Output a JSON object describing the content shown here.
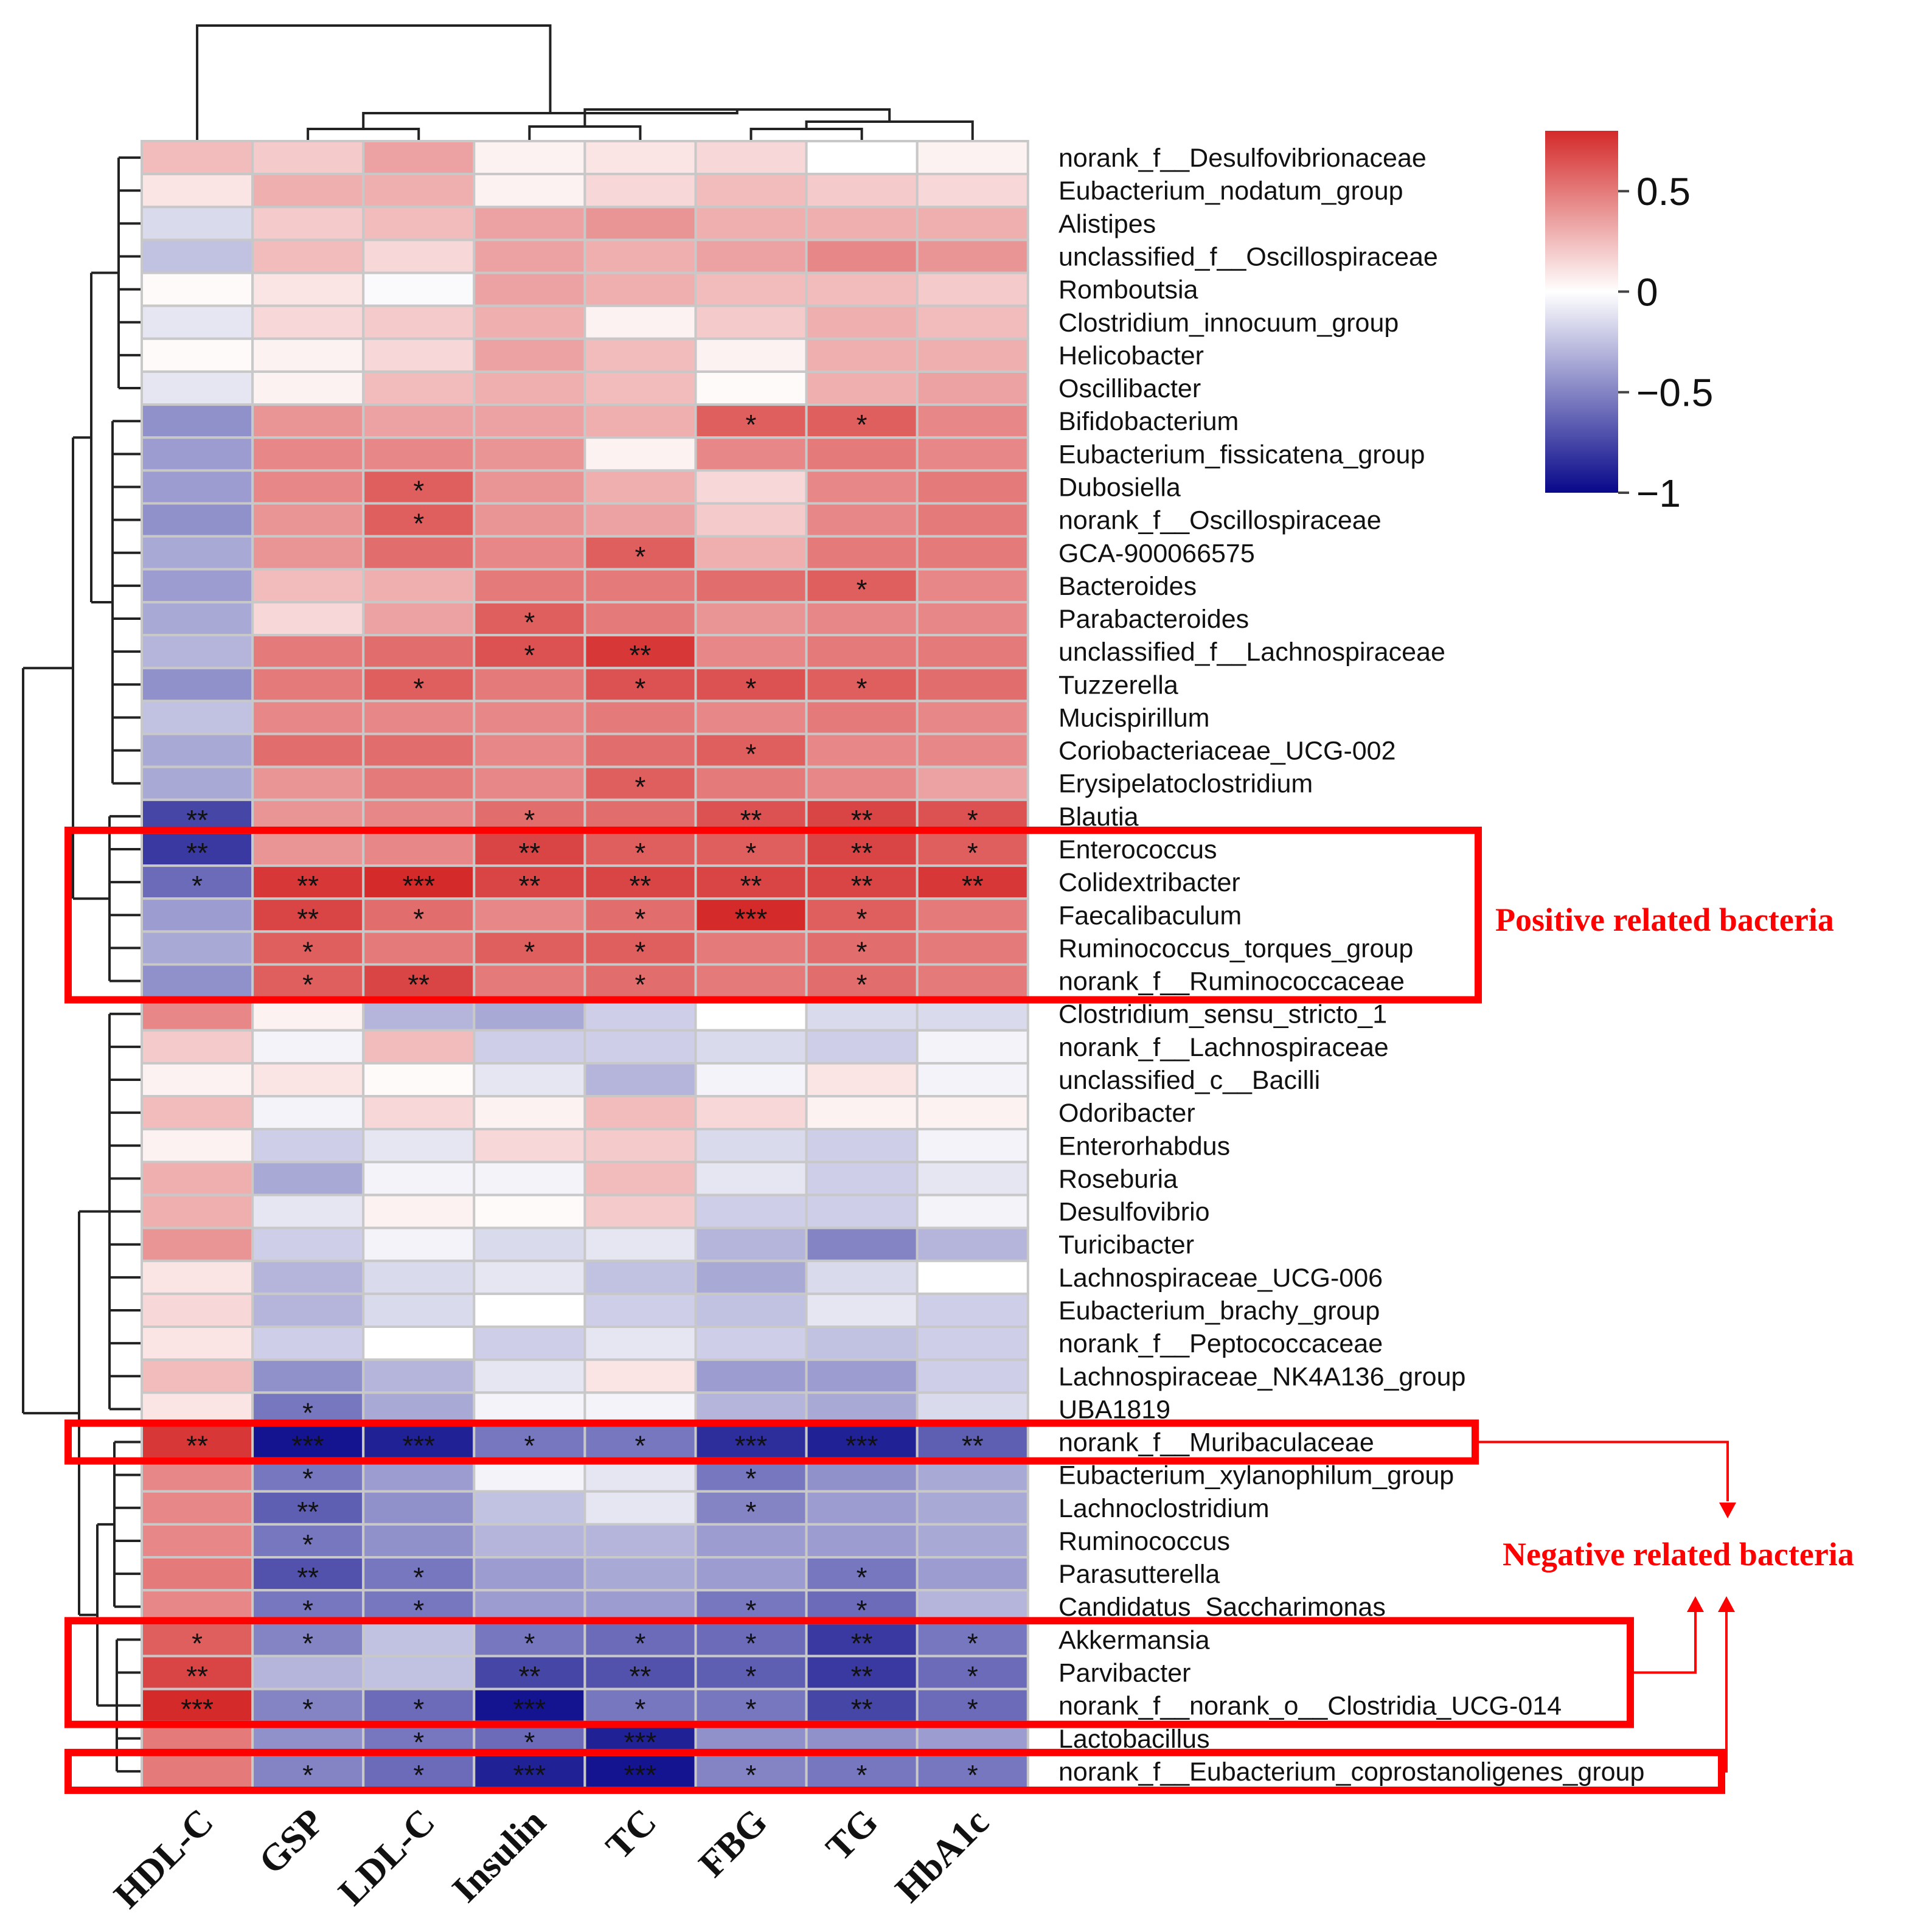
{
  "chart_data": {
    "type": "heatmap",
    "columns": [
      "HDL-C",
      "GSP",
      "LDL-C",
      "Insulin",
      "TC",
      "FBG",
      "TG",
      "HbA1c"
    ],
    "rows": [
      "norank_f__Desulfovibrionaceae",
      "Eubacterium_nodatum_group",
      "Alistipes",
      "unclassified_f__Oscillospiraceae",
      "Romboutsia",
      "Clostridium_innocuum_group",
      "Helicobacter",
      "Oscillibacter",
      "Bifidobacterium",
      "Eubacterium_fissicatena_group",
      "Dubosiella",
      "norank_f__Oscillospiraceae",
      "GCA-900066575",
      "Bacteroides",
      "Parabacteroides",
      "unclassified_f__Lachnospiraceae",
      "Tuzzerella",
      "Mucispirillum",
      "Coriobacteriaceae_UCG-002",
      "Erysipelatoclostridium",
      "Blautia",
      "Enterococcus",
      "Colidextribacter",
      "Faecalibaculum",
      "Ruminococcus_torques_group",
      "norank_f__Ruminococcaceae",
      "Clostridium_sensu_stricto_1",
      "norank_f__Lachnospiraceae",
      "unclassified_c__Bacilli",
      "Odoribacter",
      "Enterorhabdus",
      "Roseburia",
      "Desulfovibrio",
      "Turicibacter",
      "Lachnospiraceae_UCG-006",
      "Eubacterium_brachy_group",
      "norank_f__Peptococcaceae",
      "Lachnospiraceae_NK4A136_group",
      "UBA1819",
      "norank_f__Muribaculaceae",
      "Eubacterium_xylanophilum_group",
      "Lachnoclostridium",
      "Ruminococcus",
      "Parasutterella",
      "Candidatus_Saccharimonas",
      "Akkermansia",
      "Parvibacter",
      "norank_f__norank_o__Clostridia_UCG-014",
      "Lactobacillus",
      "norank_f__Eubacterium_coprostanoligenes_group"
    ],
    "values": [
      [
        0.25,
        0.2,
        0.35,
        0.05,
        0.1,
        0.15,
        0.0,
        0.05
      ],
      [
        0.1,
        0.3,
        0.3,
        0.05,
        0.15,
        0.25,
        0.2,
        0.15
      ],
      [
        -0.15,
        0.2,
        0.25,
        0.35,
        0.4,
        0.3,
        0.3,
        0.3
      ],
      [
        -0.25,
        0.25,
        0.15,
        0.35,
        0.3,
        0.35,
        0.45,
        0.4
      ],
      [
        0.02,
        0.1,
        -0.02,
        0.35,
        0.3,
        0.25,
        0.25,
        0.2
      ],
      [
        -0.1,
        0.15,
        0.2,
        0.3,
        0.05,
        0.2,
        0.3,
        0.25
      ],
      [
        0.02,
        0.05,
        0.15,
        0.35,
        0.25,
        0.05,
        0.3,
        0.3
      ],
      [
        -0.1,
        0.05,
        0.25,
        0.3,
        0.25,
        0.02,
        0.3,
        0.35
      ],
      [
        -0.45,
        0.4,
        0.35,
        0.35,
        0.3,
        0.6,
        0.6,
        0.45
      ],
      [
        -0.4,
        0.45,
        0.45,
        0.4,
        0.05,
        0.45,
        0.5,
        0.45
      ],
      [
        -0.4,
        0.45,
        0.6,
        0.4,
        0.3,
        0.15,
        0.45,
        0.5
      ],
      [
        -0.45,
        0.4,
        0.6,
        0.4,
        0.35,
        0.2,
        0.45,
        0.5
      ],
      [
        -0.35,
        0.4,
        0.55,
        0.45,
        0.6,
        0.3,
        0.5,
        0.5
      ],
      [
        -0.4,
        0.25,
        0.3,
        0.5,
        0.5,
        0.55,
        0.6,
        0.45
      ],
      [
        -0.35,
        0.15,
        0.35,
        0.6,
        0.5,
        0.4,
        0.45,
        0.45
      ],
      [
        -0.3,
        0.5,
        0.55,
        0.65,
        0.75,
        0.45,
        0.5,
        0.5
      ],
      [
        -0.45,
        0.5,
        0.6,
        0.5,
        0.65,
        0.65,
        0.6,
        0.55
      ],
      [
        -0.25,
        0.45,
        0.45,
        0.45,
        0.5,
        0.45,
        0.5,
        0.45
      ],
      [
        -0.35,
        0.55,
        0.55,
        0.45,
        0.55,
        0.6,
        0.45,
        0.45
      ],
      [
        -0.35,
        0.4,
        0.5,
        0.45,
        0.6,
        0.5,
        0.45,
        0.35
      ],
      [
        -0.75,
        0.4,
        0.45,
        0.55,
        0.55,
        0.65,
        0.7,
        0.65
      ],
      [
        -0.8,
        0.4,
        0.45,
        0.7,
        0.6,
        0.6,
        0.7,
        0.6
      ],
      [
        -0.6,
        0.75,
        0.85,
        0.7,
        0.7,
        0.7,
        0.7,
        0.75
      ],
      [
        -0.4,
        0.7,
        0.55,
        0.45,
        0.55,
        0.85,
        0.6,
        0.5
      ],
      [
        -0.35,
        0.6,
        0.5,
        0.6,
        0.6,
        0.5,
        0.55,
        0.5
      ],
      [
        -0.45,
        0.6,
        0.7,
        0.5,
        0.55,
        0.5,
        0.55,
        0.5
      ],
      [
        0.45,
        0.05,
        -0.3,
        -0.35,
        -0.2,
        0.0,
        -0.15,
        -0.15
      ],
      [
        0.2,
        -0.05,
        0.25,
        -0.2,
        -0.2,
        -0.15,
        -0.2,
        -0.05
      ],
      [
        0.05,
        0.1,
        0.02,
        -0.1,
        -0.3,
        -0.05,
        0.1,
        -0.05
      ],
      [
        0.25,
        -0.05,
        0.15,
        0.05,
        0.25,
        0.15,
        0.05,
        0.05
      ],
      [
        0.05,
        -0.2,
        -0.1,
        0.15,
        0.2,
        -0.15,
        -0.2,
        -0.05
      ],
      [
        0.3,
        -0.35,
        -0.05,
        -0.05,
        0.25,
        -0.1,
        -0.2,
        -0.1
      ],
      [
        0.3,
        -0.1,
        0.05,
        0.02,
        0.2,
        -0.2,
        -0.2,
        -0.05
      ],
      [
        0.4,
        -0.2,
        -0.05,
        -0.15,
        -0.1,
        -0.3,
        -0.5,
        -0.3
      ],
      [
        0.1,
        -0.3,
        -0.15,
        -0.1,
        -0.25,
        -0.35,
        -0.15,
        0.0
      ],
      [
        0.15,
        -0.3,
        -0.15,
        0.0,
        -0.2,
        -0.25,
        -0.1,
        -0.2
      ],
      [
        0.1,
        -0.2,
        0.0,
        -0.2,
        -0.1,
        -0.2,
        -0.25,
        -0.2
      ],
      [
        0.25,
        -0.45,
        -0.3,
        -0.1,
        0.1,
        -0.4,
        -0.4,
        -0.2
      ],
      [
        0.1,
        -0.55,
        -0.35,
        -0.05,
        -0.05,
        -0.3,
        -0.35,
        -0.15
      ],
      [
        0.75,
        -0.95,
        -0.9,
        -0.55,
        -0.55,
        -0.85,
        -0.9,
        -0.65
      ],
      [
        0.45,
        -0.55,
        -0.4,
        -0.05,
        -0.1,
        -0.55,
        -0.45,
        -0.35
      ],
      [
        0.45,
        -0.65,
        -0.45,
        -0.25,
        -0.1,
        -0.5,
        -0.4,
        -0.35
      ],
      [
        0.45,
        -0.55,
        -0.45,
        -0.3,
        -0.3,
        -0.4,
        -0.4,
        -0.35
      ],
      [
        0.5,
        -0.7,
        -0.55,
        -0.4,
        -0.35,
        -0.4,
        -0.55,
        -0.4
      ],
      [
        0.45,
        -0.55,
        -0.55,
        -0.4,
        -0.4,
        -0.55,
        -0.6,
        -0.3
      ],
      [
        0.6,
        -0.5,
        -0.25,
        -0.55,
        -0.6,
        -0.6,
        -0.8,
        -0.55
      ],
      [
        0.7,
        -0.3,
        -0.25,
        -0.75,
        -0.7,
        -0.65,
        -0.8,
        -0.6
      ],
      [
        0.8,
        -0.5,
        -0.6,
        -0.95,
        -0.55,
        -0.55,
        -0.75,
        -0.6
      ],
      [
        0.5,
        -0.45,
        -0.55,
        -0.6,
        -0.9,
        -0.45,
        -0.45,
        -0.4
      ],
      [
        0.5,
        -0.5,
        -0.6,
        -0.9,
        -0.95,
        -0.5,
        -0.55,
        -0.55
      ]
    ],
    "significance": [
      [
        "",
        "",
        "",
        "",
        "",
        "",
        "",
        ""
      ],
      [
        "",
        "",
        "",
        "",
        "",
        "",
        "",
        ""
      ],
      [
        "",
        "",
        "",
        "",
        "",
        "",
        "",
        ""
      ],
      [
        "",
        "",
        "",
        "",
        "",
        "",
        "",
        ""
      ],
      [
        "",
        "",
        "",
        "",
        "",
        "",
        "",
        ""
      ],
      [
        "",
        "",
        "",
        "",
        "",
        "",
        "",
        ""
      ],
      [
        "",
        "",
        "",
        "",
        "",
        "",
        "",
        ""
      ],
      [
        "",
        "",
        "",
        "",
        "",
        "",
        "",
        ""
      ],
      [
        "",
        "",
        "",
        "",
        "",
        "*",
        "*",
        ""
      ],
      [
        "",
        "",
        "",
        "",
        "",
        "",
        "",
        ""
      ],
      [
        "",
        "",
        "*",
        "",
        "",
        "",
        "",
        ""
      ],
      [
        "",
        "",
        "*",
        "",
        "",
        "",
        "",
        ""
      ],
      [
        "",
        "",
        "",
        "",
        "*",
        "",
        "",
        ""
      ],
      [
        "",
        "",
        "",
        "",
        "",
        "",
        "*",
        ""
      ],
      [
        "",
        "",
        "",
        "*",
        "",
        "",
        "",
        ""
      ],
      [
        "",
        "",
        "",
        "*",
        "**",
        "",
        "",
        ""
      ],
      [
        "",
        "",
        "*",
        "",
        "*",
        "*",
        "*",
        ""
      ],
      [
        "",
        "",
        "",
        "",
        "",
        "",
        "",
        ""
      ],
      [
        "",
        "",
        "",
        "",
        "",
        "*",
        "",
        ""
      ],
      [
        "",
        "",
        "",
        "",
        "*",
        "",
        "",
        ""
      ],
      [
        "**",
        "",
        "",
        "*",
        "",
        "**",
        "**",
        "*"
      ],
      [
        "**",
        "",
        "",
        "**",
        "*",
        "*",
        "**",
        "*"
      ],
      [
        "*",
        "**",
        "***",
        "**",
        "**",
        "**",
        "**",
        "**"
      ],
      [
        "",
        "**",
        "*",
        "",
        "*",
        "***",
        "*",
        ""
      ],
      [
        "",
        "*",
        "",
        "*",
        "*",
        "",
        "*",
        ""
      ],
      [
        "",
        "*",
        "**",
        "",
        "*",
        "",
        "*",
        ""
      ],
      [
        "",
        "",
        "",
        "",
        "",
        "",
        "",
        ""
      ],
      [
        "",
        "",
        "",
        "",
        "",
        "",
        "",
        ""
      ],
      [
        "",
        "",
        "",
        "",
        "",
        "",
        "",
        ""
      ],
      [
        "",
        "",
        "",
        "",
        "",
        "",
        "",
        ""
      ],
      [
        "",
        "",
        "",
        "",
        "",
        "",
        "",
        ""
      ],
      [
        "",
        "",
        "",
        "",
        "",
        "",
        "",
        ""
      ],
      [
        "",
        "",
        "",
        "",
        "",
        "",
        "",
        ""
      ],
      [
        "",
        "",
        "",
        "",
        "",
        "",
        "",
        ""
      ],
      [
        "",
        "",
        "",
        "",
        "",
        "",
        "",
        ""
      ],
      [
        "",
        "",
        "",
        "",
        "",
        "",
        "",
        ""
      ],
      [
        "",
        "",
        "",
        "",
        "",
        "",
        "",
        ""
      ],
      [
        "",
        "",
        "",
        "",
        "",
        "",
        "",
        ""
      ],
      [
        "",
        "*",
        "",
        "",
        "",
        "",
        "",
        ""
      ],
      [
        "**",
        "***",
        "***",
        "*",
        "*",
        "***",
        "***",
        "**"
      ],
      [
        "",
        "*",
        "",
        "",
        "",
        "*",
        "",
        ""
      ],
      [
        "",
        "**",
        "",
        "",
        "",
        "*",
        "",
        ""
      ],
      [
        "",
        "*",
        "",
        "",
        "",
        "",
        "",
        ""
      ],
      [
        "",
        "**",
        "*",
        "",
        "",
        "",
        "*",
        ""
      ],
      [
        "",
        "*",
        "*",
        "",
        "",
        "*",
        "*",
        ""
      ],
      [
        "*",
        "*",
        "",
        "*",
        "*",
        "*",
        "**",
        "*"
      ],
      [
        "**",
        "",
        "",
        "**",
        "**",
        "*",
        "**",
        "*"
      ],
      [
        "***",
        "*",
        "*",
        "***",
        "*",
        "*",
        "**",
        "*"
      ],
      [
        "",
        "",
        "*",
        "*",
        "***",
        "",
        "",
        ""
      ],
      [
        "",
        "*",
        "*",
        "***",
        "***",
        "*",
        "*",
        "*"
      ]
    ],
    "colorbar": {
      "range": [
        -1,
        0.8
      ],
      "ticks": [
        0.5,
        0,
        -0.5,
        -1
      ],
      "tick_labels": [
        "0.5",
        "0",
        "−0.5",
        "−1"
      ],
      "colors": {
        "low": "#08088a",
        "mid": "#ffffff",
        "high": "#d42a2a"
      }
    },
    "annotations": {
      "positive": "Positive related bacteria",
      "negative": "Negative related bacteria"
    },
    "highlight_color": "#ff0000"
  }
}
